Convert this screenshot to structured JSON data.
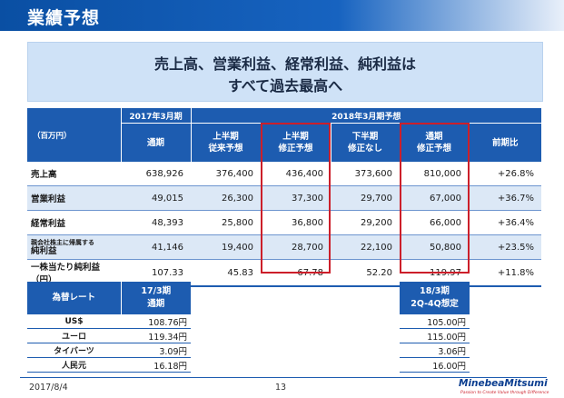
{
  "header": {
    "title": "業績予想"
  },
  "banner": {
    "line1": "売上高、営業利益、経常利益、純利益は",
    "line2": "すべて過去最高へ"
  },
  "table": {
    "unit": "（百万円）",
    "fy2017_group": "2017年3月期",
    "fy2018_group": "2018年3月期予想",
    "columns": {
      "full_year": "通期",
      "h1_orig_l1": "上半期",
      "h1_orig_l2": "従来予想",
      "h1_rev_l1": "上半期",
      "h1_rev_l2": "修正予想",
      "h2_l1": "下半期",
      "h2_l2": "修正なし",
      "fy_rev_l1": "通期",
      "fy_rev_l2": "修正予想",
      "yoy": "前期比"
    },
    "rows": [
      {
        "label": "売上高",
        "fy2017": "638,926",
        "h1_orig": "376,400",
        "h1_rev": "436,400",
        "h2": "373,600",
        "fy_rev": "810,000",
        "yoy": "+26.8%"
      },
      {
        "label": "営業利益",
        "fy2017": "49,015",
        "h1_orig": "26,300",
        "h1_rev": "37,300",
        "h2": "29,700",
        "fy_rev": "67,000",
        "yoy": "+36.7%"
      },
      {
        "label": "経常利益",
        "fy2017": "48,393",
        "h1_orig": "25,800",
        "h1_rev": "36,800",
        "h2": "29,200",
        "fy_rev": "66,000",
        "yoy": "+36.4%"
      },
      {
        "label_small": "親会社株主に帰属する",
        "label": "純利益",
        "fy2017": "41,146",
        "h1_orig": "19,400",
        "h1_rev": "28,700",
        "h2": "22,100",
        "fy_rev": "50,800",
        "yoy": "+23.5%"
      },
      {
        "label": "一株当たり純利益（円）",
        "fy2017": "107.33",
        "h1_orig": "45.83",
        "h1_rev": "67.78",
        "h2": "52.20",
        "fy_rev": "119.97",
        "yoy": "+11.8%"
      }
    ]
  },
  "fx": {
    "header": "為替レート",
    "period_l1": "17/3期",
    "period_l2": "通期",
    "forecast_l1": "18/3期",
    "forecast_l2": "2Q-4Q想定",
    "rows": [
      {
        "currency": "US$",
        "actual": "108.76円",
        "forecast": "105.00円"
      },
      {
        "currency": "ユーロ",
        "actual": "119.34円",
        "forecast": "115.00円"
      },
      {
        "currency": "タイバーツ",
        "actual": "3.09円",
        "forecast": "3.06円"
      },
      {
        "currency": "人民元",
        "actual": "16.18円",
        "forecast": "16.00円"
      }
    ]
  },
  "footer": {
    "date": "2017/8/4",
    "page": "13",
    "logo": "MinebeaMitsumi",
    "tagline": "Passion to Create Value through Difference"
  },
  "colors": {
    "header_blue": "#1d5cb0",
    "highlight_red": "#cc1f2a",
    "banner_bg": "#cfe2f7",
    "alt_row": "#dce8f6"
  }
}
